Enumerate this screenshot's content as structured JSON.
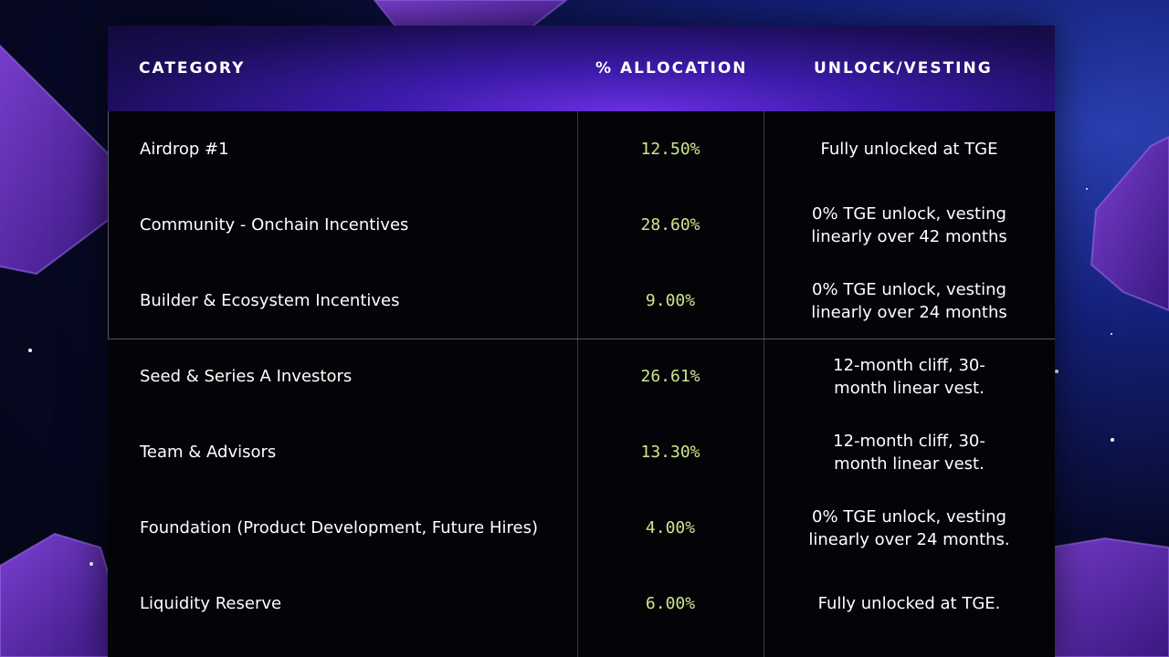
{
  "table": {
    "headers": [
      "CATEGORY",
      "% ALLOCATION",
      "UNLOCK/VESTING"
    ],
    "rows": [
      [
        "Airdrop #1",
        "12.50%",
        "Fully unlocked at TGE"
      ],
      [
        "Community - Onchain Incentives",
        "28.60%",
        "0% TGE unlock, vesting linearly over 42 months"
      ],
      [
        "Builder & Ecosystem Incentives",
        "9.00%",
        "0% TGE unlock, vesting linearly over 24 months"
      ],
      [
        "Seed & Series A Investors",
        "26.61%",
        "12-month cliff, 30-month linear vest."
      ],
      [
        "Team & Advisors",
        "13.30%",
        "12-month cliff, 30-month linear vest."
      ],
      [
        "Foundation (Product Development, Future Hires)",
        "4.00%",
        "0% TGE unlock, vesting linearly over 24 months."
      ],
      [
        "Liquidity Reserve",
        "6.00%",
        "Fully unlocked at TGE."
      ]
    ]
  }
}
